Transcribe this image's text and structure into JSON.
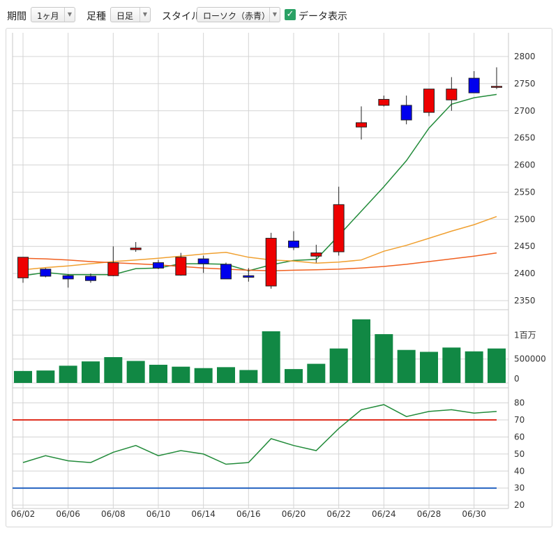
{
  "toolbar": {
    "period_label": "期間",
    "period_value": "1ヶ月",
    "candle_label": "足種",
    "candle_value": "日足",
    "style_label": "スタイル",
    "style_value": "ローソク（赤青）",
    "show_data_label": "データ表示",
    "show_data_checked": true,
    "dropdown_glyph": "▼",
    "check_glyph": "✓"
  },
  "colors": {
    "up": "#ee0000",
    "down": "#0000ee",
    "volume": "#118844",
    "ma_short": "#228b3a",
    "ma_mid": "#f0a030",
    "ma_long": "#f06020",
    "line_upper": "#e03020",
    "line_lower": "#2060c0"
  },
  "chart_data": [
    {
      "type": "candlestick",
      "price_axis": {
        "ylim": [
          2350,
          2800
        ],
        "ticks": [
          "2800",
          "2750",
          "2700",
          "2650",
          "2600",
          "2550",
          "2500",
          "2450",
          "2400",
          "2350"
        ]
      },
      "x_ticks": [
        "06/02",
        "06/06",
        "06/08",
        "06/10",
        "06/14",
        "06/16",
        "06/20",
        "06/22",
        "06/24",
        "06/28",
        "06/30"
      ],
      "x_tick_days": [
        0,
        2,
        4,
        6,
        8,
        10,
        12,
        14,
        16,
        18,
        20
      ],
      "days": [
        "06/02",
        "06/03",
        "06/06",
        "06/07",
        "06/08",
        "06/09",
        "06/10",
        "06/13",
        "06/14",
        "06/15",
        "06/16",
        "06/17",
        "06/20",
        "06/21",
        "06/22",
        "06/23",
        "06/24",
        "06/27",
        "06/28",
        "06/29",
        "06/30",
        "07/01"
      ],
      "ohlc": [
        [
          2392,
          2430,
          2383,
          2430
        ],
        [
          2408,
          2410,
          2393,
          2395
        ],
        [
          2396,
          2399,
          2374,
          2390
        ],
        [
          2395,
          2400,
          2383,
          2387
        ],
        [
          2396,
          2450,
          2395,
          2420
        ],
        [
          2444,
          2458,
          2440,
          2447
        ],
        [
          2420,
          2425,
          2408,
          2410
        ],
        [
          2397,
          2438,
          2396,
          2430
        ],
        [
          2427,
          2433,
          2401,
          2418
        ],
        [
          2417,
          2420,
          2390,
          2390
        ],
        [
          2396,
          2410,
          2385,
          2393
        ],
        [
          2377,
          2475,
          2372,
          2465
        ],
        [
          2460,
          2478,
          2443,
          2448
        ],
        [
          2432,
          2453,
          2420,
          2438
        ],
        [
          2440,
          2560,
          2433,
          2527
        ],
        [
          2670,
          2708,
          2647,
          2678
        ],
        [
          2710,
          2728,
          2708,
          2721
        ],
        [
          2710,
          2728,
          2675,
          2683
        ],
        [
          2697,
          2740,
          2690,
          2740
        ],
        [
          2720,
          2762,
          2700,
          2740
        ],
        [
          2760,
          2773,
          2733,
          2733
        ],
        [
          2745,
          2780,
          2740,
          2745
        ]
      ],
      "ma": [
        {
          "values": [
            2396,
            2402,
            2398,
            2398,
            2398,
            2409,
            2410,
            2418,
            2418,
            2417,
            2405,
            2416,
            2424,
            2426,
            2470,
            2515,
            2560,
            2608,
            2668,
            2712,
            2724,
            2730
          ]
        },
        {
          "values": [
            2407,
            2411,
            2414,
            2418,
            2422,
            2425,
            2428,
            2432,
            2436,
            2439,
            2430,
            2425,
            2423,
            2419,
            2421,
            2425,
            2441,
            2452,
            2465,
            2478,
            2490,
            2505
          ]
        },
        {
          "values": [
            2428,
            2427,
            2425,
            2422,
            2420,
            2418,
            2416,
            2413,
            2410,
            2408,
            2406,
            2405,
            2406,
            2407,
            2408,
            2410,
            2413,
            2417,
            2422,
            2427,
            2432,
            2438
          ]
        }
      ]
    },
    {
      "type": "bar",
      "name": "volume",
      "axis_ticks": [
        "1百万",
        "500000",
        "0"
      ],
      "ylim": [
        0,
        1400000
      ],
      "values": [
        250000,
        260000,
        360000,
        450000,
        540000,
        460000,
        380000,
        340000,
        310000,
        330000,
        270000,
        1080000,
        290000,
        400000,
        720000,
        1330000,
        1020000,
        690000,
        650000,
        740000,
        660000,
        720000
      ]
    },
    {
      "type": "line",
      "name": "oscillator",
      "axis_ticks": [
        "80",
        "70",
        "60",
        "50",
        "40",
        "30",
        "20"
      ],
      "ylim": [
        18,
        86
      ],
      "reference_lines": [
        70,
        30
      ],
      "values": [
        45,
        49,
        46,
        45,
        51,
        55,
        49,
        52,
        50,
        44,
        45,
        59,
        55,
        52,
        65,
        76,
        79,
        72,
        75,
        76,
        74,
        75
      ]
    }
  ]
}
